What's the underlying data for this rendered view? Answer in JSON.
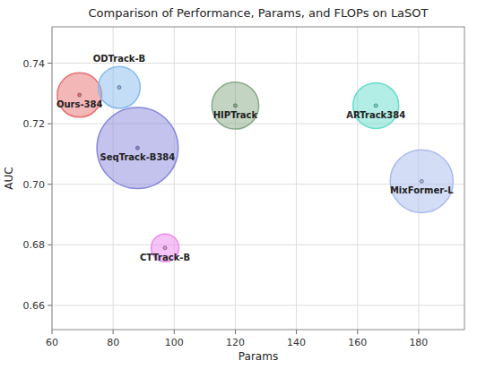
{
  "chart_data": {
    "type": "bubble",
    "title": "Comparison of Performance, Params, and FLOPs on LaSOT",
    "x_label": "Params",
    "y_label": "AUC",
    "labels": [
      "Ours-384",
      "ODTrack-B",
      "SeqTrack-B384",
      "HIPTrack",
      "CTTrack-B",
      "ARTrack384",
      "MixFormer-L"
    ],
    "x": [
      69,
      82,
      88,
      120,
      97,
      166,
      181
    ],
    "values": [
      0.7295,
      0.732,
      0.712,
      0.726,
      0.679,
      0.726,
      0.701
    ],
    "sizes": [
      180,
      160,
      600,
      200,
      70,
      190,
      360
    ],
    "colors": [
      "#e87070",
      "#88bbee",
      "#8888dd",
      "#88aa88",
      "#ee88ee",
      "#66ddcc",
      "#aabbee"
    ],
    "xlim": [
      60,
      195
    ],
    "ylim": [
      0.652,
      0.752
    ],
    "xticks": [
      60,
      80,
      100,
      120,
      140,
      160,
      180
    ],
    "yticks": [
      0.66,
      0.68,
      {
        "value": 0.7,
        "label": "0.70"
      },
      0.72,
      0.74
    ],
    "grid": true
  }
}
